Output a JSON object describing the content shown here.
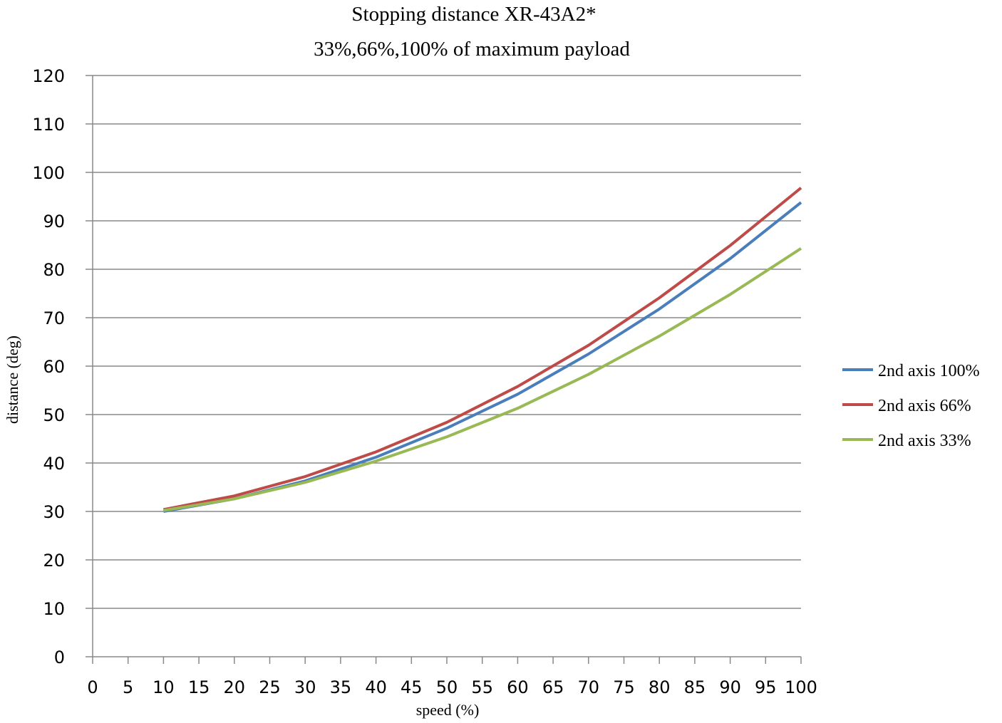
{
  "chart_data": {
    "type": "line",
    "title": "Stopping distance   XR-43A2*",
    "subtitle": "33%,66%,100% of maximum payload",
    "xlabel": "speed (%)",
    "ylabel": "distance (deg)",
    "xlim": [
      0,
      100
    ],
    "ylim": [
      0,
      120
    ],
    "xticks": [
      0,
      5,
      10,
      15,
      20,
      25,
      30,
      35,
      40,
      45,
      50,
      55,
      60,
      65,
      70,
      75,
      80,
      85,
      90,
      95,
      100
    ],
    "yticks": [
      0,
      10,
      20,
      30,
      40,
      50,
      60,
      70,
      80,
      90,
      100,
      110,
      120
    ],
    "grid": "horizontal",
    "legend_position": "right",
    "x": [
      10,
      20,
      30,
      40,
      50,
      60,
      70,
      80,
      90,
      100
    ],
    "series": [
      {
        "name": "2nd axis 100%",
        "color": "#4a7ebb",
        "values": [
          30.0,
          32.6,
          36.3,
          41.2,
          47.2,
          54.2,
          62.5,
          71.8,
          82.2,
          93.8
        ]
      },
      {
        "name": "2nd axis 66%",
        "color": "#be4b48",
        "values": [
          30.4,
          33.2,
          37.2,
          42.3,
          48.4,
          55.8,
          64.3,
          74.1,
          84.9,
          96.8
        ]
      },
      {
        "name": "2nd axis 33%",
        "color": "#98b954",
        "values": [
          30.2,
          32.6,
          36.0,
          40.4,
          45.4,
          51.3,
          58.3,
          66.2,
          74.8,
          84.3
        ]
      }
    ]
  }
}
